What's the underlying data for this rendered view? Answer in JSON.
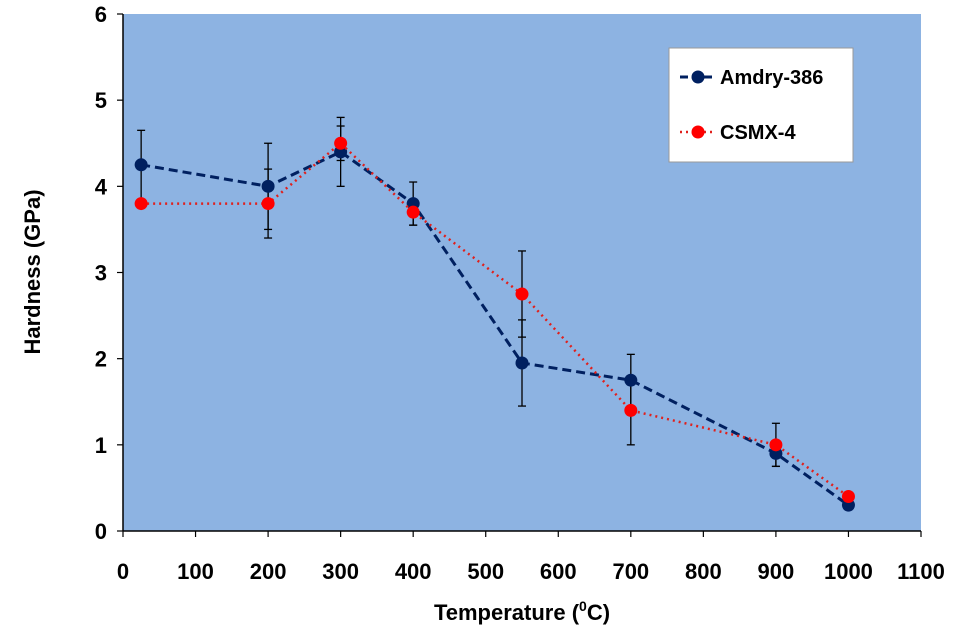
{
  "chart_data": {
    "type": "line",
    "title": "",
    "xlabel": "Temperature (",
    "xlabel_sup": "0",
    "xlabel_end": "C)",
    "ylabel": "Hardness (GPa)",
    "xlim": [
      0,
      1100
    ],
    "ylim": [
      0,
      6
    ],
    "xticks": [
      0,
      100,
      200,
      300,
      400,
      500,
      600,
      700,
      800,
      900,
      1000,
      1100
    ],
    "yticks": [
      0,
      1,
      2,
      3,
      4,
      5,
      6
    ],
    "grid": false,
    "plot_background": "#8db3e2",
    "legend_placement": "top-right",
    "series": [
      {
        "name": "Amdry-386",
        "color": "#002060",
        "line_style": "dashed",
        "x": [
          25,
          200,
          300,
          400,
          550,
          700,
          900,
          1000
        ],
        "y": [
          4.25,
          4.0,
          4.4,
          3.8,
          1.95,
          1.75,
          0.9,
          0.3
        ],
        "error": [
          0.4,
          0.5,
          0.4,
          0.25,
          0.5,
          0.3,
          0.15,
          0
        ]
      },
      {
        "name": "CSMX-4",
        "color": "#ff0000",
        "line_style": "dotted",
        "x": [
          25,
          200,
          300,
          400,
          550,
          700,
          900,
          1000
        ],
        "y": [
          3.8,
          3.8,
          4.5,
          3.7,
          2.75,
          1.4,
          1.0,
          0.4
        ],
        "error": [
          0,
          0.4,
          0.2,
          0.15,
          0.5,
          0.4,
          0.25,
          0
        ]
      }
    ]
  }
}
